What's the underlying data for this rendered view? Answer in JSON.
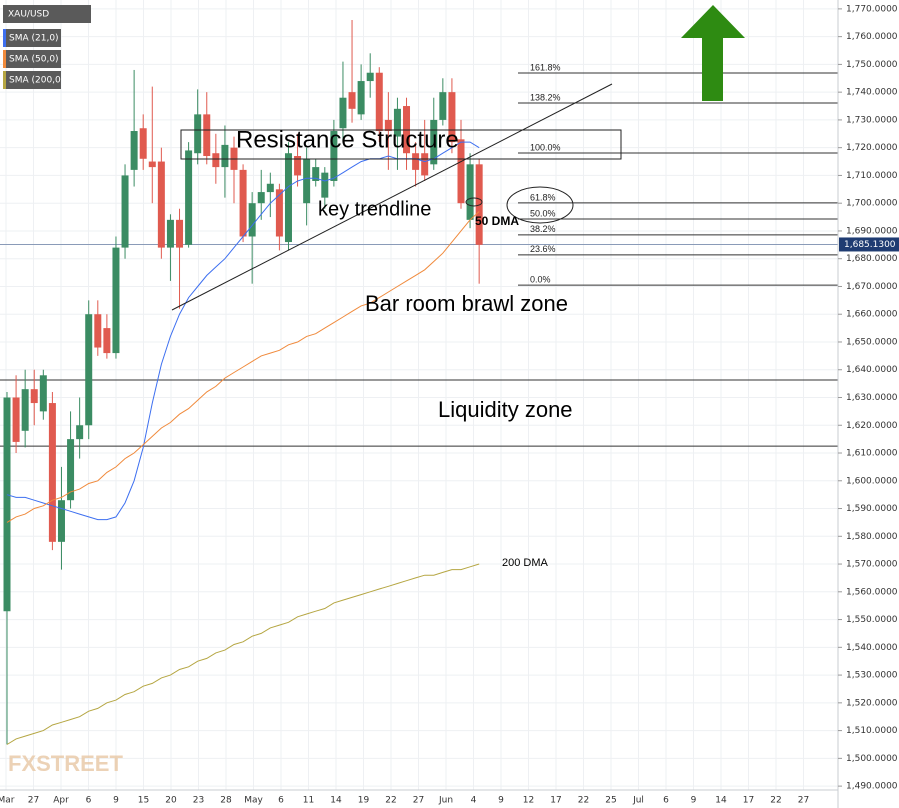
{
  "chart_data": {
    "type": "candlestick",
    "title": "XAU/USD",
    "x_labels": [
      "Mar",
      "27",
      "Apr",
      "6",
      "9",
      "15",
      "20",
      "23",
      "28",
      "May",
      "6",
      "11",
      "14",
      "19",
      "22",
      "27",
      "Jun",
      "4",
      "9",
      "12",
      "17",
      "22",
      "25",
      "Jul",
      "6",
      "9",
      "14",
      "17",
      "22",
      "27"
    ],
    "open": [
      1553,
      1630,
      1618,
      1633,
      1625,
      1628,
      1578,
      1593,
      1615,
      1620,
      1660,
      1655,
      1646,
      1684,
      1712,
      1727,
      1715,
      1715,
      1684,
      1694,
      1685,
      1718,
      1732,
      1718,
      1713,
      1720,
      1712,
      1688,
      1700,
      1704,
      1705,
      1686,
      1717,
      1700,
      1708,
      1702,
      1708,
      1727,
      1740,
      1732,
      1744,
      1747,
      1730,
      1724,
      1735,
      1718,
      1718,
      1714,
      1730,
      1740,
      1723,
      1694,
      1714
    ],
    "high": [
      1632,
      1638,
      1640,
      1640,
      1640,
      1632,
      1605,
      1625,
      1630,
      1665,
      1665,
      1660,
      1688,
      1714,
      1748,
      1732,
      1742,
      1720,
      1696,
      1698,
      1722,
      1741,
      1740,
      1725,
      1728,
      1724,
      1714,
      1704,
      1712,
      1711,
      1707,
      1722,
      1725,
      1720,
      1716,
      1713,
      1730,
      1751,
      1766,
      1750,
      1754,
      1749,
      1740,
      1738,
      1738,
      1722,
      1730,
      1738,
      1745,
      1745,
      1730,
      1718,
      1716
    ],
    "low": [
      1505,
      1610,
      1612,
      1620,
      1622,
      1575,
      1568,
      1590,
      1608,
      1615,
      1645,
      1644,
      1644,
      1680,
      1706,
      1712,
      1700,
      1680,
      1672,
      1662,
      1684,
      1714,
      1714,
      1707,
      1702,
      1700,
      1686,
      1671,
      1694,
      1695,
      1683,
      1683,
      1706,
      1692,
      1706,
      1698,
      1706,
      1722,
      1729,
      1730,
      1738,
      1722,
      1712,
      1712,
      1712,
      1706,
      1708,
      1712,
      1728,
      1718,
      1698,
      1691,
      1671
    ],
    "close": [
      1630,
      1614,
      1633,
      1628,
      1638,
      1578,
      1593,
      1615,
      1620,
      1660,
      1648,
      1646,
      1684,
      1710,
      1726,
      1716,
      1713,
      1684,
      1694,
      1684,
      1719,
      1732,
      1717,
      1713,
      1721,
      1712,
      1688,
      1700,
      1704,
      1707,
      1688,
      1718,
      1710,
      1716,
      1713,
      1711,
      1726,
      1738,
      1734,
      1744,
      1747,
      1726,
      1726,
      1734,
      1718,
      1712,
      1710,
      1730,
      1740,
      1722,
      1700,
      1714,
      1685
    ],
    "up_color": "#3b8c63",
    "down_color": "#e05a4f",
    "series": [
      {
        "name": "SMA (21,0)",
        "color": "#3d6ff0",
        "values": [
          1595,
          1594,
          1594,
          1593,
          1592,
          1591,
          1590,
          1589,
          1588,
          1587,
          1586,
          1586,
          1587,
          1592,
          1600,
          1612,
          1628,
          1642,
          1652,
          1660,
          1666,
          1670,
          1674,
          1677,
          1680,
          1684,
          1688,
          1692,
          1696,
          1700,
          1703,
          1706,
          1708,
          1709,
          1709,
          1708,
          1709,
          1711,
          1713,
          1715,
          1716,
          1716,
          1717,
          1716,
          1716,
          1716,
          1715,
          1716,
          1718,
          1720,
          1722,
          1722,
          1720
        ]
      },
      {
        "name": "SMA (50,0)",
        "color": "#f08a3c",
        "values": [
          1585,
          1587,
          1588,
          1590,
          1591,
          1593,
          1594,
          1596,
          1597,
          1599,
          1600,
          1603,
          1605,
          1608,
          1610,
          1613,
          1616,
          1619,
          1621,
          1624,
          1626,
          1629,
          1632,
          1634,
          1637,
          1639,
          1641,
          1643,
          1645,
          1646,
          1647,
          1649,
          1650,
          1652,
          1653,
          1655,
          1657,
          1659,
          1661,
          1663,
          1664,
          1666,
          1668,
          1670,
          1672,
          1674,
          1676,
          1679,
          1682,
          1686,
          1690,
          1694,
          1697
        ]
      },
      {
        "name": "SMA (200,0)",
        "color": "#b5a642",
        "values": [
          1505,
          1507,
          1508,
          1509,
          1510,
          1512,
          1513,
          1514,
          1515,
          1517,
          1518,
          1520,
          1521,
          1523,
          1524,
          1526,
          1527,
          1529,
          1530,
          1532,
          1533,
          1535,
          1536,
          1538,
          1539,
          1541,
          1542,
          1544,
          1545,
          1547,
          1548,
          1549,
          1551,
          1552,
          1553,
          1554,
          1556,
          1557,
          1558,
          1559,
          1560,
          1561,
          1562,
          1563,
          1564,
          1565,
          1566,
          1566,
          1567,
          1568,
          1568,
          1569,
          1570
        ]
      }
    ],
    "ylim": [
      1488.6,
      1773.2
    ],
    "yticks": [
      {
        "value": 1770,
        "label": "1,770.0000"
      },
      {
        "value": 1760,
        "label": "1,760.0000"
      },
      {
        "value": 1750,
        "label": "1,750.0000"
      },
      {
        "value": 1740,
        "label": "1,740.0000"
      },
      {
        "value": 1730,
        "label": "1,730.0000"
      },
      {
        "value": 1720,
        "label": "1,720.0000"
      },
      {
        "value": 1710,
        "label": "1,710.0000"
      },
      {
        "value": 1700,
        "label": "1,700.0000"
      },
      {
        "value": 1690,
        "label": "1,690.0000"
      },
      {
        "value": 1680,
        "label": "1,680.0000"
      },
      {
        "value": 1670,
        "label": "1,670.0000"
      },
      {
        "value": 1660,
        "label": "1,660.0000"
      },
      {
        "value": 1650,
        "label": "1,650.0000"
      },
      {
        "value": 1640,
        "label": "1,640.0000"
      },
      {
        "value": 1630,
        "label": "1,630.0000"
      },
      {
        "value": 1620,
        "label": "1,620.0000"
      },
      {
        "value": 1610,
        "label": "1,610.0000"
      },
      {
        "value": 1600,
        "label": "1,600.0000"
      },
      {
        "value": 1590,
        "label": "1,590.0000"
      },
      {
        "value": 1580,
        "label": "1,580.0000"
      },
      {
        "value": 1570,
        "label": "1,570.0000"
      },
      {
        "value": 1560,
        "label": "1,560.0000"
      },
      {
        "value": 1550,
        "label": "1,550.0000"
      },
      {
        "value": 1540,
        "label": "1,540.0000"
      },
      {
        "value": 1530,
        "label": "1,530.0000"
      },
      {
        "value": 1520,
        "label": "1,520.0000"
      },
      {
        "value": 1510,
        "label": "1,510.0000"
      },
      {
        "value": 1500,
        "label": "1,500.0000"
      },
      {
        "value": 1490,
        "label": "1,490.0000"
      }
    ],
    "grid": true,
    "last_price": {
      "value": 1685.13,
      "label": "1,685.1300"
    },
    "fib_levels": [
      {
        "label": "161.8%",
        "value": 1746.9
      },
      {
        "label": "138.2%",
        "value": 1736.1
      },
      {
        "label": "100.0%",
        "value": 1718.1
      },
      {
        "label": "61.8%",
        "value": 1700.1
      },
      {
        "label": "50.0%",
        "value": 1694.3
      },
      {
        "label": "38.2%",
        "value": 1688.6
      },
      {
        "label": "23.6%",
        "value": 1681.4
      },
      {
        "label": "0.0%",
        "value": 1670.5
      }
    ],
    "zone_lines": [
      1636.3,
      1612.5
    ],
    "annotations": {
      "resistance": "Resistance Structure",
      "trendline": "key trendline",
      "dma50": "50 DMA",
      "brawl": "Bar room brawl zone",
      "liquidity": "Liquidity zone",
      "dma200": "200 DMA"
    },
    "watermark": "FXSTREET"
  }
}
